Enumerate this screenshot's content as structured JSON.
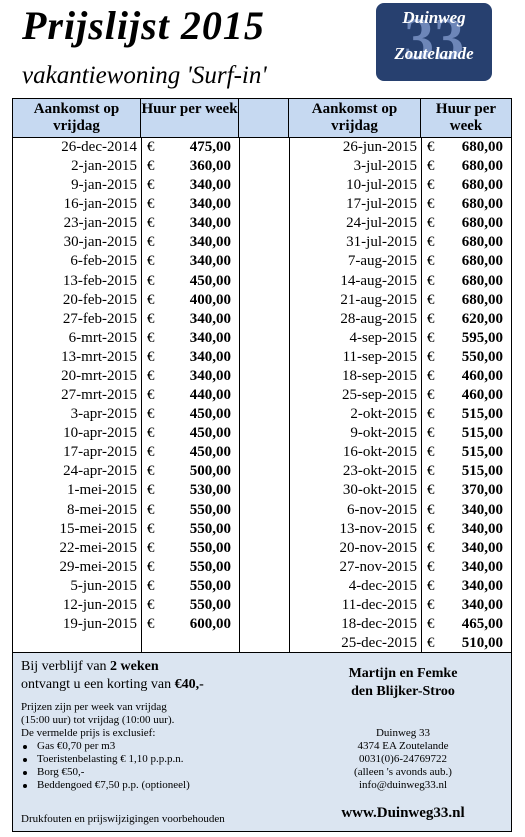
{
  "header": {
    "title": "Prijslijst 2015",
    "subtitle": "vakantiewoning 'Surf-in'",
    "logo": {
      "top": "Duinweg",
      "number": "33",
      "bottom": "Zoutelande"
    }
  },
  "table": {
    "headers": [
      "Aankomst op vrijdag",
      "Huur per week",
      "Aankomst op vrijdag",
      "Huur per week"
    ],
    "currency": "€",
    "left": [
      [
        "26-dec-2014",
        "475,00"
      ],
      [
        "2-jan-2015",
        "360,00"
      ],
      [
        "9-jan-2015",
        "340,00"
      ],
      [
        "16-jan-2015",
        "340,00"
      ],
      [
        "23-jan-2015",
        "340,00"
      ],
      [
        "30-jan-2015",
        "340,00"
      ],
      [
        "6-feb-2015",
        "340,00"
      ],
      [
        "13-feb-2015",
        "450,00"
      ],
      [
        "20-feb-2015",
        "400,00"
      ],
      [
        "27-feb-2015",
        "340,00"
      ],
      [
        "6-mrt-2015",
        "340,00"
      ],
      [
        "13-mrt-2015",
        "340,00"
      ],
      [
        "20-mrt-2015",
        "340,00"
      ],
      [
        "27-mrt-2015",
        "440,00"
      ],
      [
        "3-apr-2015",
        "450,00"
      ],
      [
        "10-apr-2015",
        "450,00"
      ],
      [
        "17-apr-2015",
        "450,00"
      ],
      [
        "24-apr-2015",
        "500,00"
      ],
      [
        "1-mei-2015",
        "530,00"
      ],
      [
        "8-mei-2015",
        "550,00"
      ],
      [
        "15-mei-2015",
        "550,00"
      ],
      [
        "22-mei-2015",
        "550,00"
      ],
      [
        "29-mei-2015",
        "550,00"
      ],
      [
        "5-jun-2015",
        "550,00"
      ],
      [
        "12-jun-2015",
        "550,00"
      ],
      [
        "19-jun-2015",
        "600,00"
      ]
    ],
    "right": [
      [
        "26-jun-2015",
        "680,00"
      ],
      [
        "3-jul-2015",
        "680,00"
      ],
      [
        "10-jul-2015",
        "680,00"
      ],
      [
        "17-jul-2015",
        "680,00"
      ],
      [
        "24-jul-2015",
        "680,00"
      ],
      [
        "31-jul-2015",
        "680,00"
      ],
      [
        "7-aug-2015",
        "680,00"
      ],
      [
        "14-aug-2015",
        "680,00"
      ],
      [
        "21-aug-2015",
        "680,00"
      ],
      [
        "28-aug-2015",
        "620,00"
      ],
      [
        "4-sep-2015",
        "595,00"
      ],
      [
        "11-sep-2015",
        "550,00"
      ],
      [
        "18-sep-2015",
        "460,00"
      ],
      [
        "25-sep-2015",
        "460,00"
      ],
      [
        "2-okt-2015",
        "515,00"
      ],
      [
        "9-okt-2015",
        "515,00"
      ],
      [
        "16-okt-2015",
        "515,00"
      ],
      [
        "23-okt-2015",
        "515,00"
      ],
      [
        "30-okt-2015",
        "370,00"
      ],
      [
        "6-nov-2015",
        "340,00"
      ],
      [
        "13-nov-2015",
        "340,00"
      ],
      [
        "20-nov-2015",
        "340,00"
      ],
      [
        "27-nov-2015",
        "340,00"
      ],
      [
        "4-dec-2015",
        "340,00"
      ],
      [
        "11-dec-2015",
        "340,00"
      ],
      [
        "18-dec-2015",
        "465,00"
      ],
      [
        "25-dec-2015",
        "510,00"
      ]
    ]
  },
  "footer": {
    "offer": {
      "a": "Bij verblijf van",
      "b": "2 weken",
      "c": "ontvangt u een korting van",
      "d": "€40,-"
    },
    "info": [
      "Prijzen zijn per week van vrijdag",
      "(15:00 uur) tot vrijdag (10:00 uur).",
      "De vermelde prijs is exclusief:"
    ],
    "bullets": [
      "Gas €0,70 per m3",
      "Toeristenbelasting  € 1,10 p.p.p.n.",
      "Borg €50,-",
      "Beddengoed  €7,50 p.p. (optioneel)"
    ],
    "disclaimer": "Drukfouten en prijswijzigingen voorbehouden",
    "owners": [
      "Martijn en Femke",
      "den Blijker-Stroo"
    ],
    "address": [
      "Duinweg 33",
      "4374 EA Zoutelande",
      "0031(0)6-24769722",
      "(alleen 's avonds aub.)",
      "info@duinweg33.nl"
    ],
    "website": "www.Duinweg33.nl"
  }
}
